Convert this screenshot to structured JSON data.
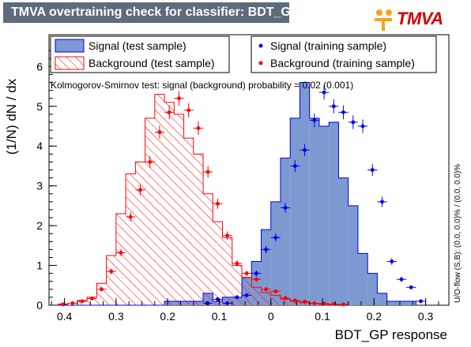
{
  "title": "TMVA overtraining check for classifier: BDT_GP",
  "logo": {
    "text": "TMVA",
    "icon": "tmva-logo-icon",
    "accent": "#d00000",
    "dot_color": "#f7a21a"
  },
  "colors": {
    "signal_fill": "#7d99d1",
    "signal_line": "#0000ee",
    "signal_points": "#0000ee",
    "background_line": "#ff0000",
    "background_points": "#ff0000",
    "title_bg": "#5d6b7d"
  },
  "chart_data": {
    "type": "bar",
    "xlabel": "BDT_GP response",
    "ylabel": "(1/N) dN / dx",
    "xlim": [
      -0.43,
      0.345
    ],
    "ylim": [
      0,
      6.8
    ],
    "x_ticks": [
      -0.4,
      -0.3,
      -0.2,
      -0.1,
      0,
      0.1,
      0.2,
      0.3
    ],
    "x_tick_labels": [
      "0.4",
      "0.3",
      "0.2",
      "0.1",
      "0",
      "0.1",
      "0.2",
      "0.3"
    ],
    "y_ticks": [
      0,
      1,
      2,
      3,
      4,
      5,
      6
    ],
    "y_tick_labels": [
      "0",
      "1",
      "2",
      "3",
      "4",
      "5",
      "6"
    ],
    "bin_edges_start": -0.4125,
    "bin_width": 0.01875,
    "annotation": "Kolmogorov-Smirnov test: signal (background) probability =  0.02 (0.001)",
    "side_note": "U/O-flow (S,B): (0.0, 0.0)% / (0.0, 0.0)%",
    "legend": {
      "placement": "top",
      "entries": [
        {
          "label": "Signal (test sample)",
          "style": "filled-box"
        },
        {
          "label": "Signal (training sample)",
          "style": "marker"
        },
        {
          "label": "Background (test sample)",
          "style": "hatched-box"
        },
        {
          "label": "Background (training sample)",
          "style": "marker"
        }
      ]
    },
    "series": [
      {
        "name": "Signal (test sample)",
        "values": [
          0,
          0,
          0,
          0,
          0,
          0,
          0,
          0,
          0,
          0,
          0,
          0.1,
          0.1,
          0.1,
          0.1,
          0.3,
          0.1,
          0.2,
          0.2,
          0.7,
          1.1,
          1.9,
          2.6,
          3.7,
          4.7,
          5.6,
          4.7,
          4.5,
          4.6,
          3.2,
          2.5,
          1.3,
          0.8,
          0.3,
          0.1,
          0.1,
          0.1
        ]
      },
      {
        "name": "Signal (training sample)",
        "values": [
          0,
          0,
          0,
          0,
          0,
          0,
          0,
          0,
          0,
          0,
          0,
          0,
          0,
          0,
          0,
          0.05,
          0.15,
          0.05,
          0.2,
          0.25,
          0.8,
          1.4,
          1.7,
          2.45,
          3.5,
          3.9,
          4.65,
          5.35,
          5.0,
          4.85,
          4.6,
          4.5,
          3.4,
          2.6,
          1.1,
          0.65,
          0.45,
          0.1
        ]
      },
      {
        "name": "Background (test sample)",
        "values": [
          0.03,
          0.05,
          0.12,
          0.2,
          0.55,
          1.25,
          2.3,
          3.3,
          3.6,
          4.7,
          5.3,
          5.1,
          4.8,
          4.2,
          3.8,
          2.8,
          2.1,
          1.7,
          1.0,
          0.7,
          0.45,
          0.32,
          0.25,
          0.15,
          0.1,
          0.06,
          0.04,
          0.02,
          0.01,
          0.01
        ]
      },
      {
        "name": "Background (training sample)",
        "values": [
          0.02,
          0.05,
          0.1,
          0.17,
          0.4,
          0.85,
          1.32,
          2.22,
          2.9,
          3.6,
          4.35,
          4.85,
          5.2,
          4.9,
          4.45,
          3.35,
          2.55,
          1.75,
          1.05,
          0.8,
          0.65,
          0.4,
          0.35,
          0.18,
          0.12,
          0.09,
          0.05,
          0.04,
          0.03,
          0.02
        ]
      }
    ]
  }
}
